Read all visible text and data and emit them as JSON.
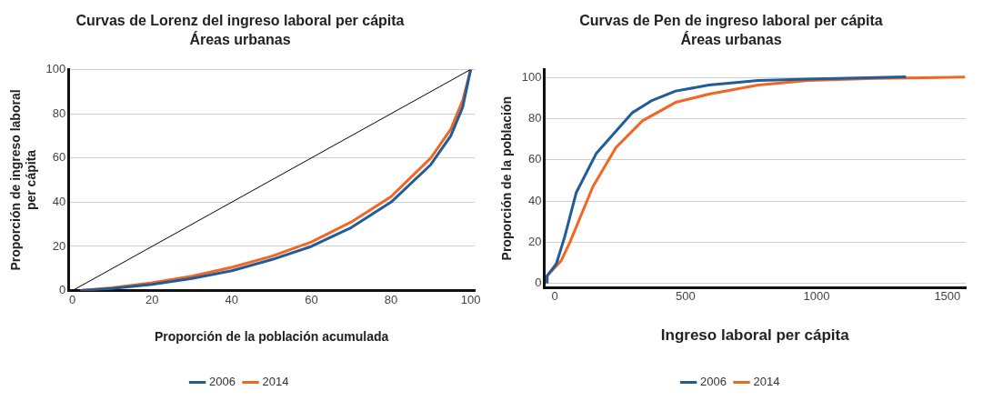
{
  "chart_data": [
    {
      "type": "line",
      "title": "Curvas de Lorenz del ingreso laboral per cápita",
      "subtitle": "Áreas urbanas",
      "xlabel": "Proporción de la población acumulada",
      "ylabel": "Proporción de ingreso laboral\nper cápita",
      "xlim": [
        -1,
        101
      ],
      "ylim": [
        0,
        100
      ],
      "xticks": [
        0,
        20,
        40,
        60,
        80,
        100
      ],
      "yticks": [
        0,
        20,
        40,
        60,
        80,
        100
      ],
      "grid": "y",
      "legend": "bottom",
      "marker": "none",
      "line_style": "solid",
      "series": [
        {
          "color": "#000000",
          "x": [
            0,
            100
          ],
          "values": [
            0,
            100
          ]
        },
        {
          "name": "2006",
          "color": "#1f5c99",
          "x": [
            2,
            10,
            20,
            30,
            40,
            50,
            60,
            70,
            80,
            90,
            95,
            98,
            100
          ],
          "values": [
            0,
            1,
            2.8,
            5.5,
            9,
            14,
            20,
            28.5,
            40,
            57,
            70,
            83,
            100
          ]
        },
        {
          "name": "2014",
          "color": "#f26522",
          "x": [
            2,
            10,
            20,
            30,
            40,
            50,
            60,
            70,
            80,
            90,
            95,
            98,
            100
          ],
          "values": [
            0,
            1.3,
            3.5,
            6.5,
            10.5,
            15.5,
            22,
            31,
            42.5,
            60,
            73,
            86,
            100
          ]
        }
      ]
    },
    {
      "type": "line",
      "title": "Curvas de Pen de ingreso laboral per cápita",
      "subtitle": "Áreas urbanas",
      "xlabel": "Ingreso laboral per cápita",
      "ylabel": "Proporción de la población",
      "xlim": [
        -40,
        1570
      ],
      "ylim": [
        -2,
        104
      ],
      "xticks": [
        0,
        500,
        1000,
        1500
      ],
      "yticks": [
        0,
        20,
        40,
        60,
        80,
        100
      ],
      "grid": "y",
      "legend": "bottom",
      "marker": "none",
      "line_style": "solid",
      "series": [
        {
          "name": "2006",
          "color": "#1f5c99",
          "x": [
            -29,
            -29,
            6,
            38,
            82,
            158,
            234,
            297,
            373,
            462,
            589,
            778,
            968,
            1342
          ],
          "values": [
            0,
            3.6,
            9.4,
            22.5,
            44,
            63,
            74,
            83,
            89,
            93.5,
            96.4,
            98.6,
            99.3,
            100.4
          ]
        },
        {
          "name": "2014",
          "color": "#f26522",
          "x": [
            -29,
            -29,
            25,
            57,
            146,
            234,
            335,
            462,
            589,
            778,
            968,
            1222,
            1567
          ],
          "values": [
            0,
            3.6,
            11,
            19.6,
            47,
            66,
            79,
            88,
            92,
            96.4,
            98.6,
            99.6,
            100.3
          ]
        }
      ]
    }
  ]
}
